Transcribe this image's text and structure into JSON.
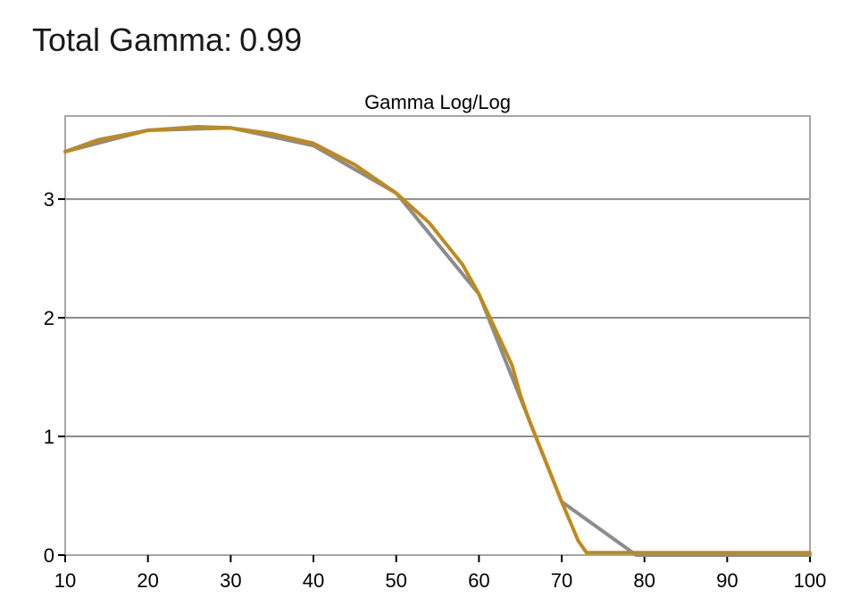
{
  "header": {
    "label": "Total Gamma:",
    "value": "0.99"
  },
  "chart_data": {
    "type": "line",
    "title": "Gamma Log/Log",
    "xlabel": "",
    "ylabel": "",
    "xlim": [
      10,
      100
    ],
    "ylim": [
      0,
      3.7
    ],
    "xticks": [
      10,
      20,
      30,
      40,
      50,
      60,
      70,
      80,
      90,
      100
    ],
    "yticks": [
      0,
      1,
      2,
      3
    ],
    "grid": "horizontal",
    "legend": "none",
    "series": [
      {
        "color": "#8c8c8c",
        "x": [
          10,
          20,
          30,
          40,
          50,
          60,
          70,
          79,
          80,
          90,
          100
        ],
        "y": [
          3.4,
          3.58,
          3.6,
          3.45,
          3.05,
          2.2,
          0.45,
          0.0,
          0.0,
          0.0,
          0.0
        ]
      },
      {
        "color": "#c08a1a",
        "x": [
          10,
          14,
          20,
          26,
          30,
          35,
          40,
          45,
          50,
          54,
          58,
          60,
          62,
          64,
          65,
          66,
          68,
          70,
          72,
          73,
          80,
          90,
          100
        ],
        "y": [
          3.4,
          3.5,
          3.58,
          3.61,
          3.6,
          3.55,
          3.47,
          3.29,
          3.05,
          2.8,
          2.45,
          2.2,
          1.9,
          1.6,
          1.35,
          1.15,
          0.8,
          0.45,
          0.12,
          0.02,
          0.02,
          0.02,
          0.02
        ]
      }
    ]
  }
}
